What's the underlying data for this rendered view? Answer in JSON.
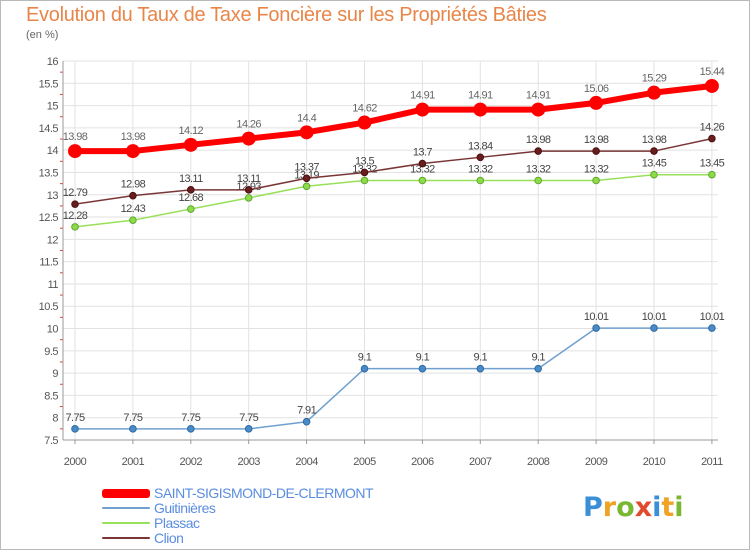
{
  "title": "Evolution du Taux de Taxe Foncière sur les Propriétés Bâties",
  "unit": "(en %)",
  "logo": {
    "text": "Proxiti",
    "colors": [
      "#3b8fd6",
      "#f0a224",
      "#7ab833",
      "#e04b2d",
      "#3b8fd6",
      "#f0a224",
      "#7ab833"
    ]
  },
  "chart_data": {
    "type": "line",
    "title": "Evolution du Taux de Taxe Foncière sur les Propriétés Bâties",
    "ylabel": "(en %)",
    "categories": [
      "2000",
      "2001",
      "2002",
      "2003",
      "2004",
      "2005",
      "2006",
      "2007",
      "2008",
      "2009",
      "2010",
      "2011"
    ],
    "ylim": [
      7.5,
      16
    ],
    "ytick_step": 0.5,
    "yticks": [
      "7.5",
      "8",
      "8.5",
      "9",
      "9.5",
      "10",
      "10.5",
      "11",
      "11.5",
      "12",
      "12.5",
      "13",
      "13.5",
      "14",
      "14.5",
      "15",
      "15.5",
      "16"
    ],
    "grid": true,
    "legend_position": "bottom-left",
    "series": [
      {
        "name": "SAINT-SIGISMOND-DE-CLERMONT",
        "color": "#ff0000",
        "values": [
          13.98,
          13.98,
          14.12,
          14.26,
          14.4,
          14.62,
          14.91,
          14.91,
          14.91,
          15.06,
          15.29,
          15.44
        ],
        "labels": [
          "13.98",
          "13.98",
          "14.12",
          "14.26",
          "14.4",
          "14.62",
          "14.91",
          "14.91",
          "14.91",
          "15.06",
          "15.29",
          "15.44"
        ]
      },
      {
        "name": "Guitinières",
        "color": "#6fa0cf",
        "values": [
          7.75,
          7.75,
          7.75,
          7.75,
          7.91,
          9.1,
          9.1,
          9.1,
          9.1,
          10.01,
          10.01,
          10.01
        ],
        "labels": [
          "7.75",
          "7.75",
          "7.75",
          "7.75",
          "7.91",
          "9.1",
          "9.1",
          "9.1",
          "9.1",
          "10.01",
          "10.01",
          "10.01"
        ]
      },
      {
        "name": "Plassac",
        "color": "#99e05a",
        "values": [
          12.28,
          12.43,
          12.68,
          12.93,
          13.19,
          13.32,
          13.32,
          13.32,
          13.32,
          13.32,
          13.45,
          13.45
        ],
        "labels": [
          "12.28",
          "12.43",
          "12.68",
          "12.93",
          "13.19",
          "13.32",
          "13.32",
          "13.32",
          "13.32",
          "13.32",
          "13.45",
          "13.45"
        ]
      },
      {
        "name": "Clion",
        "color": "#7a3636",
        "values": [
          12.79,
          12.98,
          13.11,
          13.11,
          13.37,
          13.5,
          13.7,
          13.84,
          13.98,
          13.98,
          13.98,
          14.26
        ],
        "labels": [
          "12.79",
          "12.98",
          "13.11",
          "13.11",
          "13.37",
          "13.5",
          "13.7",
          "13.84",
          "13.98",
          "13.98",
          "13.98",
          "14.26"
        ]
      }
    ]
  }
}
